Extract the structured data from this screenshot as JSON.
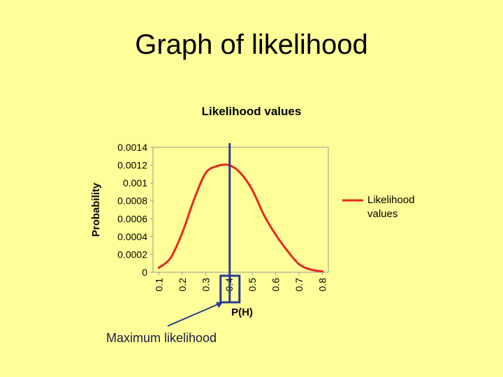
{
  "slide": {
    "title": "Graph of likelihood"
  },
  "annotation": {
    "label": "Maximum likelihood"
  },
  "colors": {
    "background": "#FFFF99",
    "series": "#E8281E",
    "marker": "#2B3990"
  },
  "chart_data": {
    "type": "line",
    "title": "Likelihood values",
    "xlabel": "P(H)",
    "ylabel": "Probability",
    "x": [
      0.1,
      0.15,
      0.2,
      0.25,
      0.3,
      0.35,
      0.4,
      0.45,
      0.5,
      0.55,
      0.6,
      0.65,
      0.7,
      0.75,
      0.8
    ],
    "x_ticks": [
      "0.1",
      "0.2",
      "0.3",
      "0.4",
      "0.5",
      "0.6",
      "0.7",
      "0.8"
    ],
    "y_ticks": [
      "0",
      "0.0002",
      "0.0004",
      "0.0006",
      "0.0008",
      "0.001",
      "0.0012",
      "0.0014"
    ],
    "ylim": [
      0,
      0.0014
    ],
    "grid": false,
    "legend_position": "right",
    "series": [
      {
        "name": "Likelihood values",
        "values": [
          5e-05,
          0.00016,
          0.00044,
          0.00081,
          0.00111,
          0.00119,
          0.0012,
          0.00111,
          0.00092,
          0.00064,
          0.00042,
          0.00024,
          9e-05,
          3e-05,
          1e-05
        ]
      }
    ],
    "marker_x": 0.4
  }
}
